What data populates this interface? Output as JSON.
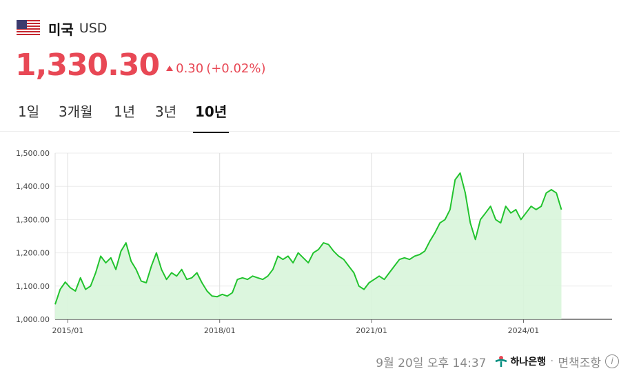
{
  "header": {
    "flag_icon": "us-flag-icon",
    "country": "미국",
    "currency": "USD"
  },
  "quote": {
    "price": "1,330.30",
    "change": "0.30",
    "change_pct": "(+0.02%)",
    "direction_icon": "triangle-up-icon",
    "color": "#e84855"
  },
  "tabs": [
    {
      "label": "1일",
      "active": false
    },
    {
      "label": "3개월",
      "active": false
    },
    {
      "label": "1년",
      "active": false
    },
    {
      "label": "3년",
      "active": false
    },
    {
      "label": "10년",
      "active": true
    }
  ],
  "footer": {
    "timestamp": "9월 20일 오후 14:37",
    "bank_name": "하나은행",
    "bank_icon": "hana-bank-logo",
    "separator": "·",
    "disclaimer": "면책조항",
    "info_icon": "info-icon"
  },
  "chart_data": {
    "type": "area",
    "ylim": [
      1000,
      1500
    ],
    "yticks": [
      "1,000.00",
      "1,100.00",
      "1,200.00",
      "1,300.00",
      "1,400.00",
      "1,500.00"
    ],
    "ytick_values": [
      1000,
      1100,
      1200,
      1300,
      1400,
      1500
    ],
    "xticks": [
      "2015/01",
      "2018/01",
      "2021/01",
      "2024/01"
    ],
    "xtick_values": [
      2015.0,
      2018.0,
      2021.0,
      2024.0
    ],
    "xlim": [
      2014.75,
      2025.75
    ],
    "line_color": "#22c32e",
    "fill_color": "#d8f5da",
    "series": [
      {
        "x": [
          2014.75,
          2014.85,
          2014.95,
          2015.05,
          2015.15,
          2015.25,
          2015.35,
          2015.45,
          2015.55,
          2015.65,
          2015.75,
          2015.85,
          2015.95,
          2016.05,
          2016.15,
          2016.25,
          2016.35,
          2016.45,
          2016.55,
          2016.65,
          2016.75,
          2016.85,
          2016.95,
          2017.05,
          2017.15,
          2017.25,
          2017.35,
          2017.45,
          2017.55,
          2017.65,
          2017.75,
          2017.85,
          2017.95,
          2018.05,
          2018.15,
          2018.25,
          2018.35,
          2018.45,
          2018.55,
          2018.65,
          2018.75,
          2018.85,
          2018.95,
          2019.05,
          2019.15,
          2019.25,
          2019.35,
          2019.45,
          2019.55,
          2019.65,
          2019.75,
          2019.85,
          2019.95,
          2020.05,
          2020.15,
          2020.25,
          2020.35,
          2020.45,
          2020.55,
          2020.65,
          2020.75,
          2020.85,
          2020.95,
          2021.05,
          2021.15,
          2021.25,
          2021.35,
          2021.45,
          2021.55,
          2021.65,
          2021.75,
          2021.85,
          2021.95,
          2022.05,
          2022.15,
          2022.25,
          2022.35,
          2022.45,
          2022.55,
          2022.65,
          2022.75,
          2022.85,
          2022.95,
          2023.05,
          2023.15,
          2023.25,
          2023.35,
          2023.45,
          2023.55,
          2023.65,
          2023.75,
          2023.85,
          2023.95,
          2024.05,
          2024.15,
          2024.25,
          2024.35,
          2024.45,
          2024.55,
          2024.65,
          2024.75
        ],
        "y": [
          1045,
          1090,
          1112,
          1095,
          1085,
          1125,
          1090,
          1100,
          1140,
          1190,
          1170,
          1185,
          1150,
          1205,
          1230,
          1175,
          1150,
          1115,
          1110,
          1160,
          1200,
          1150,
          1120,
          1140,
          1130,
          1150,
          1120,
          1125,
          1140,
          1110,
          1085,
          1070,
          1068,
          1075,
          1070,
          1080,
          1120,
          1125,
          1120,
          1130,
          1125,
          1120,
          1130,
          1150,
          1190,
          1180,
          1190,
          1170,
          1200,
          1185,
          1170,
          1200,
          1210,
          1230,
          1225,
          1205,
          1190,
          1180,
          1160,
          1140,
          1100,
          1090,
          1110,
          1120,
          1130,
          1120,
          1140,
          1160,
          1180,
          1185,
          1180,
          1190,
          1195,
          1205,
          1235,
          1260,
          1290,
          1300,
          1330,
          1420,
          1440,
          1380,
          1290,
          1240,
          1300,
          1320,
          1340,
          1300,
          1290,
          1340,
          1320,
          1330,
          1300,
          1320,
          1340,
          1330,
          1340,
          1380,
          1390,
          1380,
          1330
        ]
      }
    ]
  }
}
